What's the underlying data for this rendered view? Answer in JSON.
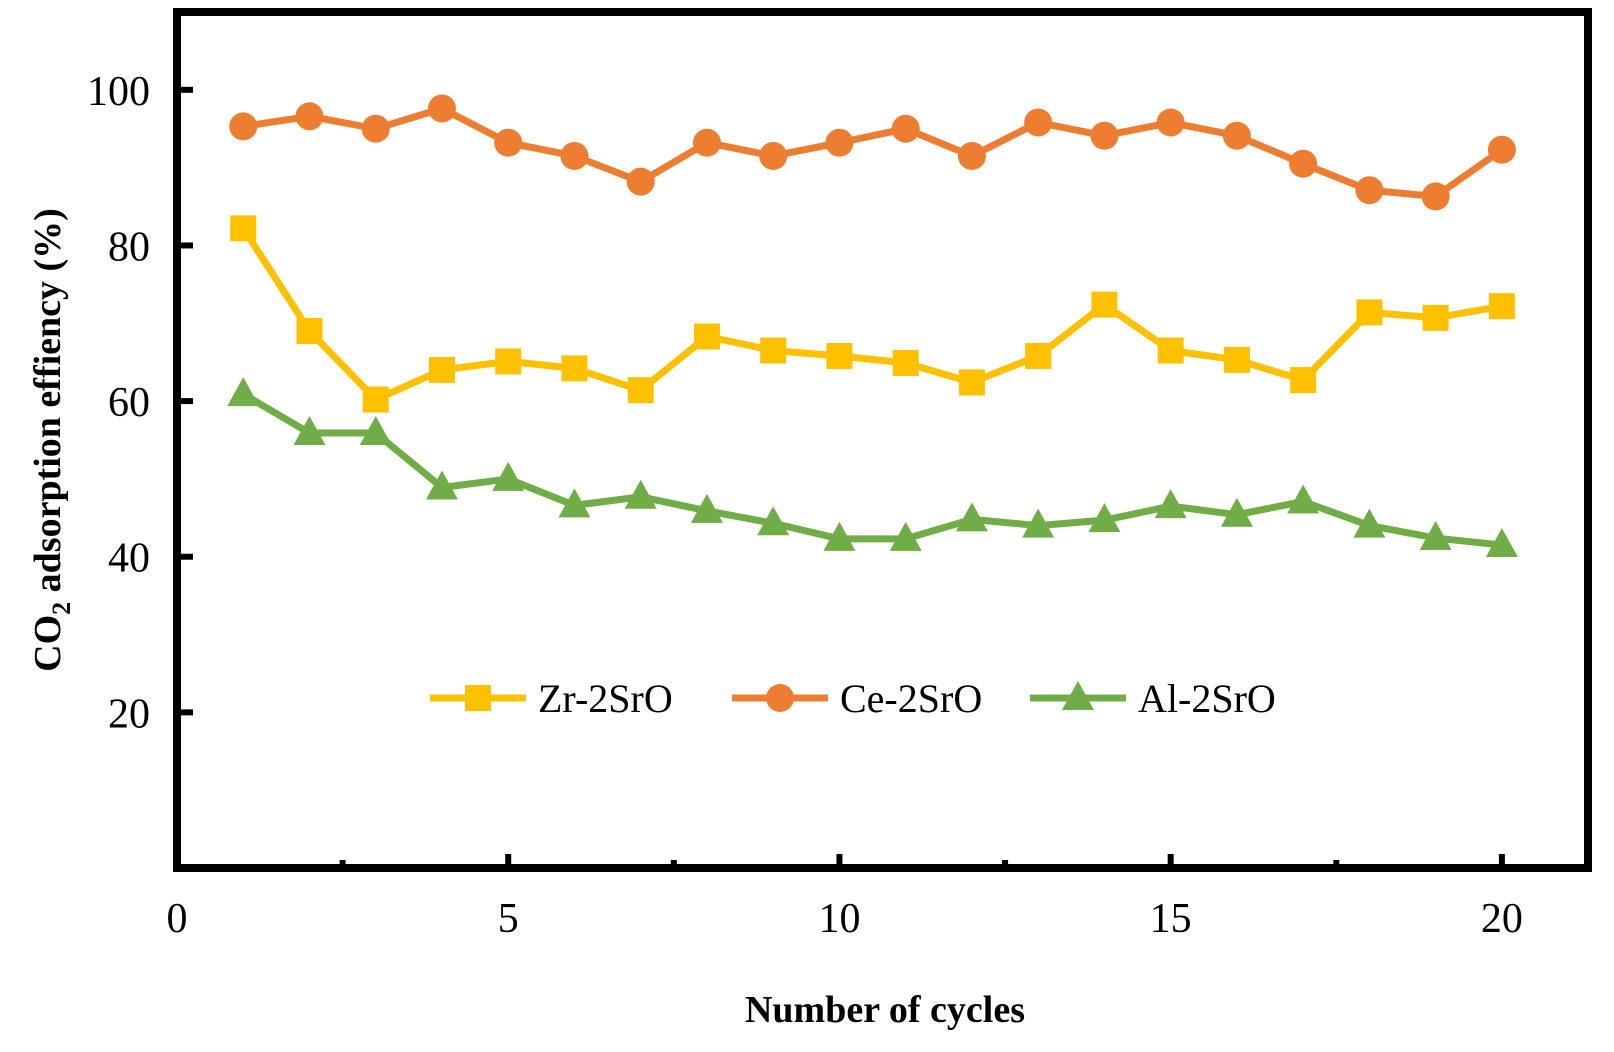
{
  "chart_data": {
    "type": "line",
    "title": "",
    "xlabel": "Number of cycles",
    "ylabel": {
      "prefix": "CO",
      "subscript": "2",
      "suffix": " adsorption effiency (%)"
    },
    "xlim": [
      0,
      21.3
    ],
    "ylim": [
      0,
      110
    ],
    "x_ticks": [
      0,
      5,
      10,
      15,
      20
    ],
    "x_minor_ticks": [
      2.5,
      7.5,
      12.5,
      17.5
    ],
    "y_ticks": [
      20,
      40,
      60,
      80,
      100
    ],
    "grid": false,
    "legend_position": "lower-center",
    "x": [
      1,
      2,
      3,
      4,
      5,
      6,
      7,
      8,
      9,
      10,
      11,
      12,
      13,
      14,
      15,
      16,
      17,
      18,
      19,
      20
    ],
    "series": [
      {
        "name": "Zr-2SrO",
        "color": "#FFC000",
        "marker": "square",
        "values": [
          82.2,
          69.0,
          60.2,
          64.0,
          65.1,
          64.2,
          61.4,
          68.3,
          66.5,
          65.8,
          64.9,
          62.4,
          65.8,
          72.4,
          66.5,
          65.3,
          62.7,
          71.4,
          70.7,
          72.2
        ]
      },
      {
        "name": "Ce-2SrO",
        "color": "#ED7D31",
        "marker": "circle",
        "values": [
          95.3,
          96.6,
          95.0,
          97.6,
          93.2,
          91.5,
          88.2,
          93.2,
          91.5,
          93.2,
          95.0,
          91.5,
          95.8,
          94.1,
          95.8,
          94.1,
          90.5,
          87.1,
          86.3,
          92.3
        ]
      },
      {
        "name": "Al-2SrO",
        "color": "#70AD47",
        "marker": "triangle",
        "values": [
          60.9,
          55.9,
          55.9,
          48.9,
          50.0,
          46.6,
          47.7,
          45.9,
          44.3,
          42.3,
          42.3,
          44.8,
          44.0,
          44.7,
          46.5,
          45.4,
          47.1,
          44.0,
          42.4,
          41.5
        ]
      }
    ]
  }
}
